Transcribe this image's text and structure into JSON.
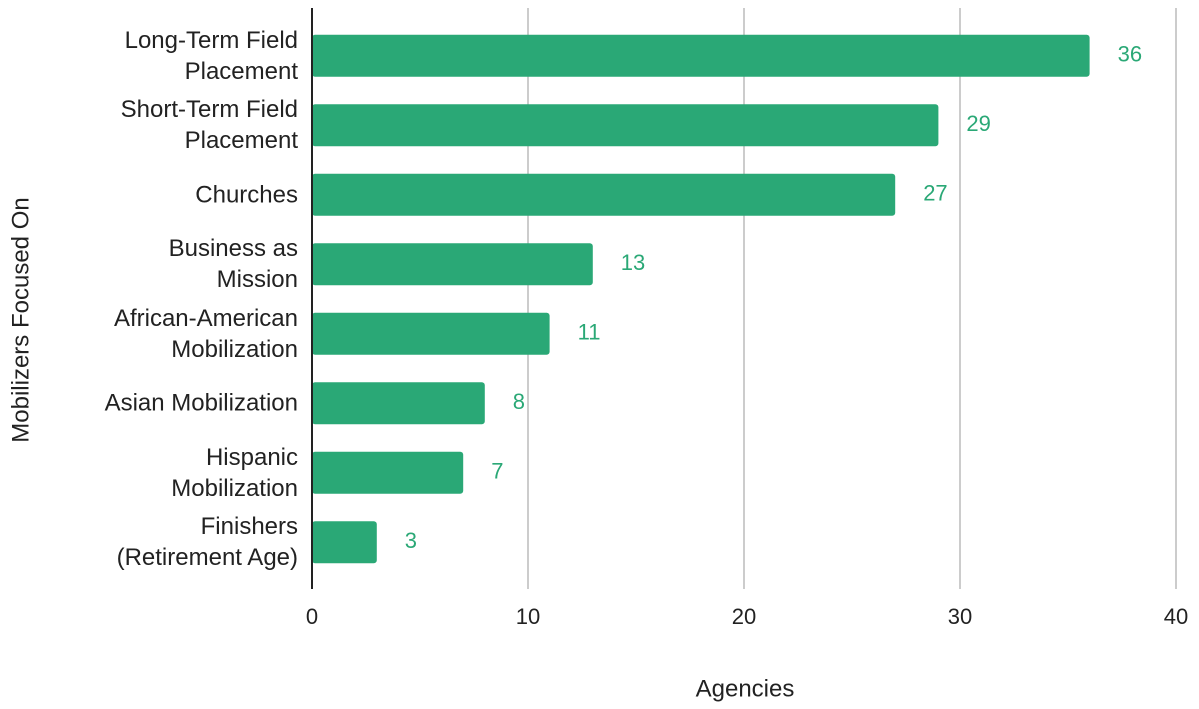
{
  "chart_data": {
    "type": "barh",
    "categories": [
      "Long-Term Field Placement",
      "Short-Term Field Placement",
      "Churches",
      "Business as Mission",
      "African-American Mobilization",
      "Asian Mobilization",
      "Hispanic Mobilization",
      "Finishers (Retirement Age)"
    ],
    "values": [
      36,
      29,
      27,
      13,
      11,
      8,
      7,
      3
    ],
    "color": "#2aa876",
    "xlim": [
      0,
      40
    ],
    "xticks": [
      0,
      10,
      20,
      30,
      40
    ],
    "grid": true,
    "x_label": "Agencies",
    "y_label": "Mobilizers Focused On"
  }
}
